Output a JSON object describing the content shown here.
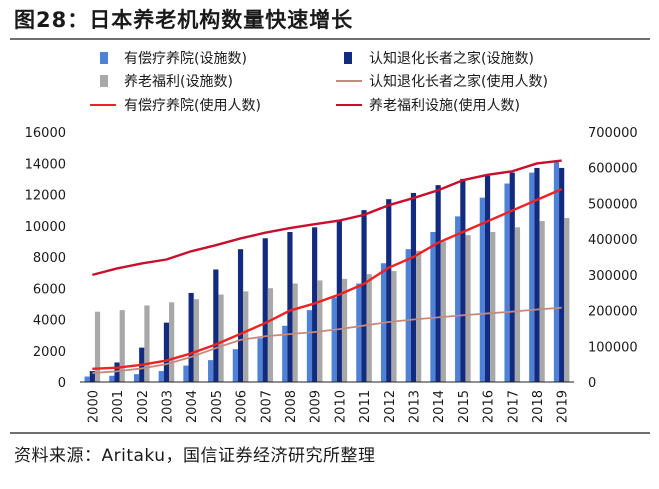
{
  "header": {
    "title": "图28：日本养老机构数量快速增长"
  },
  "footer": {
    "source": "资料来源：Aritaku，国信证券经济研究所整理"
  },
  "colors": {
    "care_facility": "#4f81d6",
    "dementia_home": "#132b7e",
    "welfare_facility": "#a8a8a8",
    "dementia_users": "#c58a7e",
    "care_users": "#ee2222",
    "welfare_users": "#c8102e",
    "axis": "#222222",
    "text": "#1a1a1a"
  },
  "chart_data": {
    "type": "bar+line",
    "title": "图28：日本养老机构数量快速增长",
    "categories": [
      "2000",
      "2001",
      "2002",
      "2003",
      "2004",
      "2005",
      "2006",
      "2007",
      "2008",
      "2009",
      "2010",
      "2011",
      "2012",
      "2013",
      "2014",
      "2015",
      "2016",
      "2017",
      "2018",
      "2019"
    ],
    "y_left": {
      "min": 0,
      "max": 16000,
      "ticks": [
        0,
        2000,
        4000,
        6000,
        8000,
        10000,
        12000,
        14000,
        16000
      ]
    },
    "y_right": {
      "min": 0,
      "max": 700000,
      "ticks": [
        0,
        100000,
        200000,
        300000,
        400000,
        500000,
        600000,
        700000
      ]
    },
    "bar_series": [
      {
        "name": "有偿疗养院(设施数)",
        "color_key": "care_facility",
        "values": [
          350,
          400,
          500,
          700,
          1050,
          1400,
          2100,
          2800,
          3600,
          4600,
          5400,
          6300,
          7600,
          8500,
          9600,
          10600,
          11800,
          12700,
          13400,
          14100
        ]
      },
      {
        "name": "认知退化长者之家(设施数)",
        "color_key": "dementia_home",
        "values": [
          700,
          1250,
          2200,
          3800,
          5700,
          7200,
          8500,
          9200,
          9600,
          9900,
          10400,
          11000,
          11700,
          12100,
          12600,
          13000,
          13200,
          13400,
          13700,
          13700
        ]
      },
      {
        "name": "养老福利(设施数)",
        "color_key": "welfare_facility",
        "values": [
          4500,
          4600,
          4900,
          5100,
          5300,
          5600,
          5800,
          6000,
          6300,
          6500,
          6600,
          6900,
          7100,
          8400,
          9000,
          9400,
          9600,
          9900,
          10300,
          10500
        ]
      }
    ],
    "line_series": [
      {
        "name": "认知退化长者之家(使用人数)",
        "color_key": "dementia_users",
        "axis": "right",
        "values": [
          25000,
          30000,
          38000,
          50000,
          70000,
          95000,
          118000,
          128000,
          134000,
          140000,
          148000,
          158000,
          168000,
          175000,
          181000,
          187000,
          192000,
          197000,
          203000,
          208000
        ]
      },
      {
        "name": "有偿疗养院(使用人数)",
        "color_key": "care_users",
        "axis": "right",
        "values": [
          37000,
          40000,
          48000,
          60000,
          80000,
          105000,
          135000,
          165000,
          200000,
          220000,
          245000,
          275000,
          320000,
          350000,
          390000,
          420000,
          450000,
          480000,
          510000,
          540000
        ]
      },
      {
        "name": "养老福利设施(使用人数)",
        "color_key": "welfare_users",
        "axis": "right",
        "values": [
          300000,
          318000,
          332000,
          343000,
          366000,
          383000,
          402000,
          418000,
          431000,
          442000,
          452000,
          468000,
          495000,
          515000,
          537000,
          565000,
          580000,
          590000,
          612000,
          620000
        ]
      }
    ],
    "legend": {
      "position": "top",
      "columns": 2
    }
  }
}
